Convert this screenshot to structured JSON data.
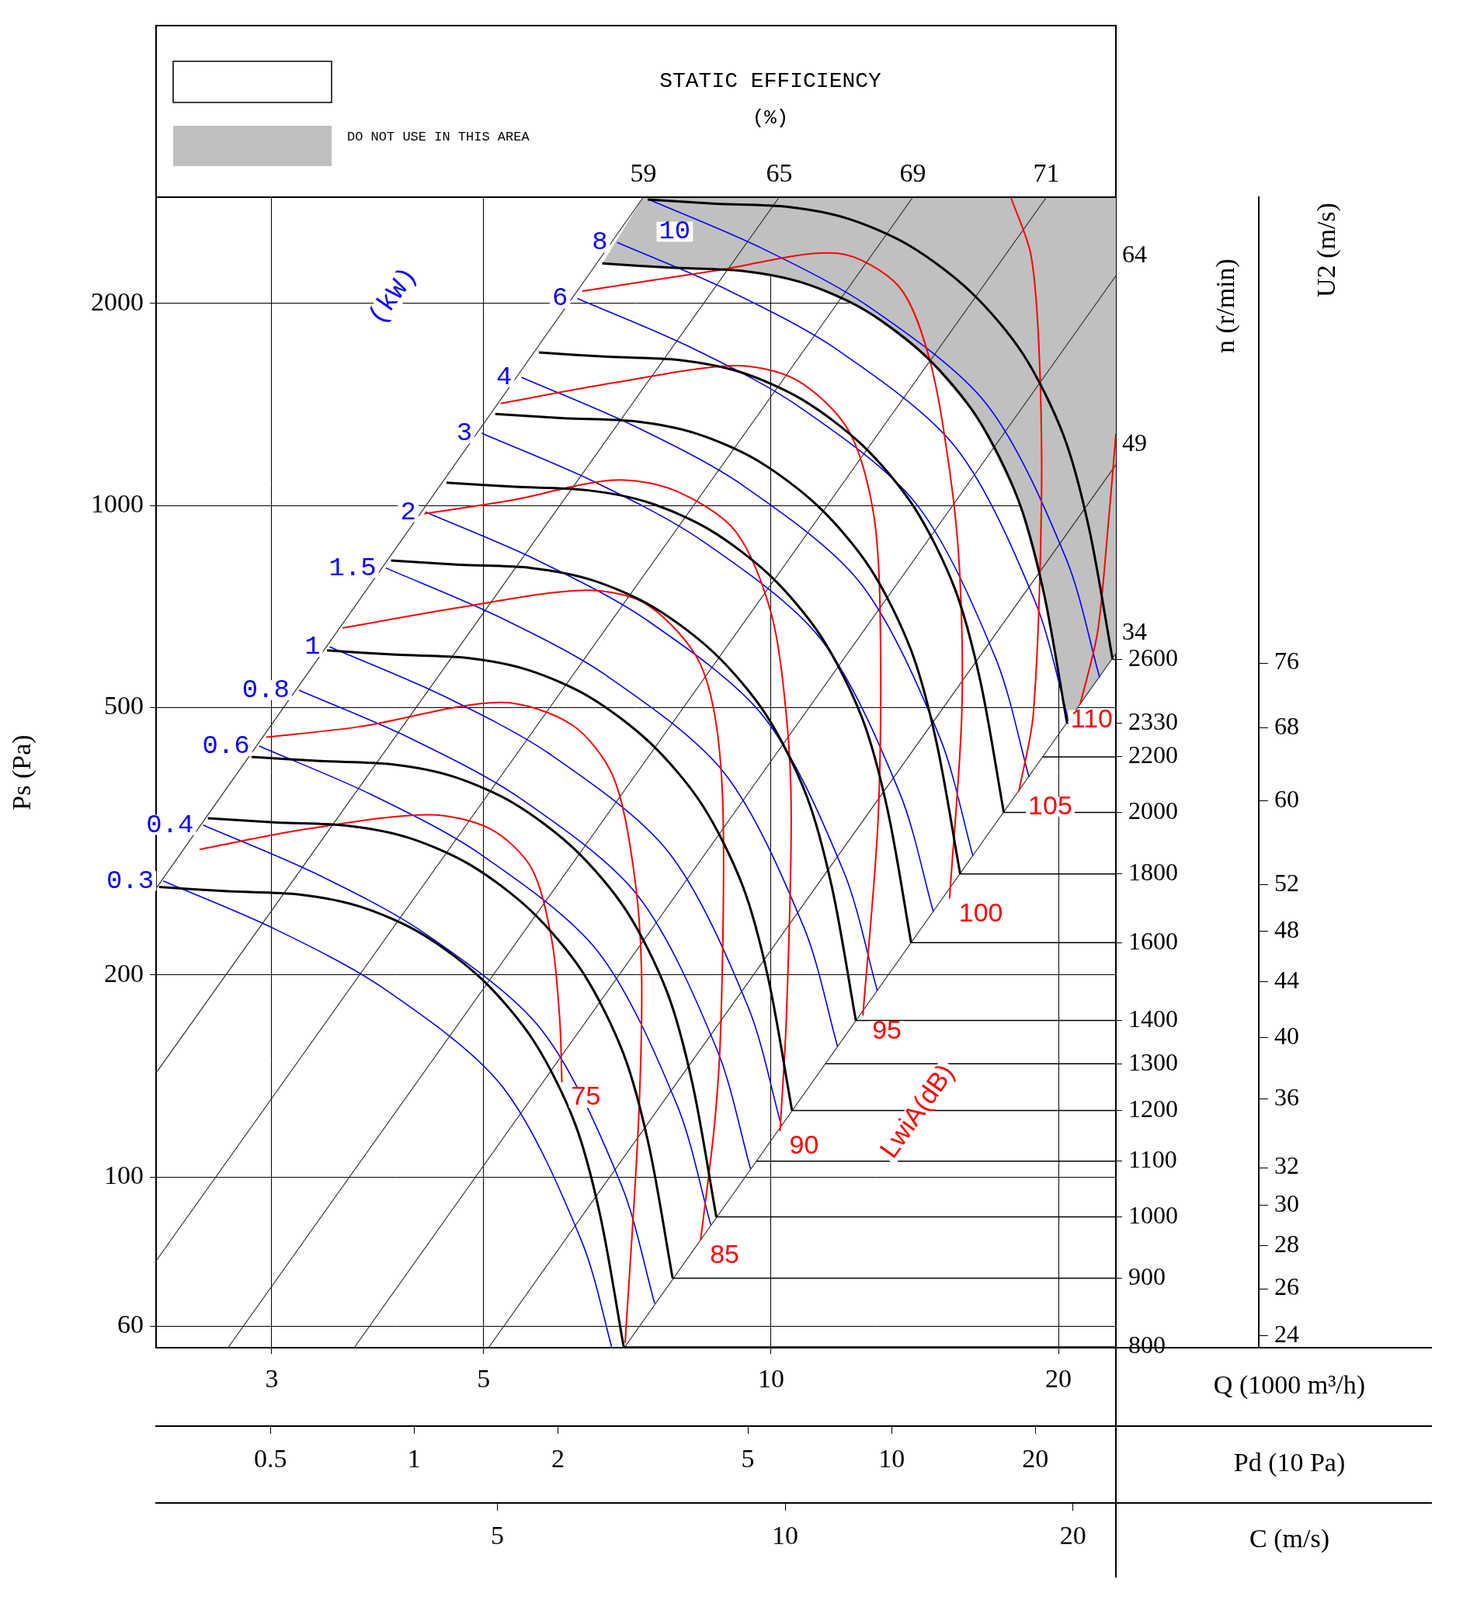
{
  "chart_data": {
    "type": "line",
    "title": "STATIC EFFICIENCY",
    "subtitle": "(%)",
    "x_label": "Q (1000 m³/h)",
    "y_label": "Ps (Pa)",
    "y2_label": "n (r/min)",
    "y3_label": "U2 (m/s)",
    "x2_label": "Pd (10 Pa)",
    "x3_label": "C (m/s)",
    "power_label": "(kW)",
    "noise_label": "LwiA(dB)",
    "log": true,
    "grid": true,
    "legend": "upper left",
    "xlim": [
      2.27,
      22.97
    ],
    "xticks": [
      3,
      5,
      10,
      20
    ],
    "ylim": [
      55.7,
      2878
    ],
    "yticks": [
      60,
      100,
      200,
      500,
      1000,
      2000
    ],
    "y2lim": [
      799,
      5743
    ],
    "y2ticks": [
      800,
      900,
      1000,
      1100,
      1200,
      1300,
      1400,
      1600,
      1800,
      2000,
      2200,
      2330,
      2600
    ],
    "y3lim": [
      23.5,
      168.9
    ],
    "y3ticks": [
      24,
      26,
      28,
      30,
      32,
      36,
      40,
      44,
      48,
      52,
      60,
      68,
      76
    ],
    "x2lim": [
      0.288,
      29.5
    ],
    "x2ticks": [
      0.5,
      1,
      2,
      5,
      10,
      20
    ],
    "x3lim": [
      2.198,
      22.18
    ],
    "x3ticks": [
      5,
      10,
      20
    ],
    "do_not_use_area": {
      "name": "DO NOT USE IN THIS AREA",
      "color": "#c0c0c0",
      "x": [
        6.657,
        7.855,
        9.337,
        10.82,
        12.55,
        14.53,
        16.44,
        18.14,
        19.29,
        20.42,
        22.97,
        22.97,
        7.35
      ],
      "values": [
        2293,
        2260,
        2235,
        2144,
        1953,
        1667,
        1352,
        1022,
        745.1,
        473.7,
        602,
        2878,
        2878
      ]
    },
    "efficiency_lines": [
      {
        "efficiency": 59,
        "color": "#333333",
        "x": [
          2.27,
          7.35
        ],
        "values": [
          269,
          2878
        ]
      },
      {
        "efficiency": 65,
        "color": "#333333",
        "x": [
          2.27,
          10.2
        ],
        "values": [
          142.9,
          2878
        ]
      },
      {
        "efficiency": 69,
        "color": "#333333",
        "x": [
          2.27,
          14.08
        ],
        "values": [
          75.0,
          2878
        ]
      },
      {
        "efficiency": 71,
        "color": "#333333",
        "x": [
          2.7,
          19.43
        ],
        "values": [
          55.7,
          2878
        ]
      },
      {
        "efficiency": 64,
        "color": "#333333",
        "x": [
          3.66,
          22.97
        ],
        "values": [
          55.7,
          2198
        ]
      },
      {
        "efficiency": 49,
        "color": "#333333",
        "x": [
          5.06,
          22.97
        ],
        "values": [
          55.7,
          1150
        ]
      },
      {
        "efficiency": 34,
        "color": "#333333",
        "x": [
          7.02,
          22.97
        ],
        "values": [
          55.7,
          602
        ]
      }
    ],
    "speed_curves": [
      {
        "n": 800,
        "color": "#000000",
        "x": [
          2.286,
          2.697,
          3.206,
          3.714,
          4.308,
          4.988,
          5.645,
          6.228,
          6.622,
          7.011
        ],
        "values": [
          270.3,
          266.4,
          263.5,
          252.7,
          230.2,
          196.6,
          159.3,
          120.5,
          87.8,
          55.8
        ]
      },
      {
        "n": 900,
        "color": "#000000",
        "x": [
          2.572,
          3.034,
          3.607,
          4.179,
          4.847,
          5.612,
          6.352,
          7.008,
          7.451,
          7.888
        ],
        "values": [
          342.2,
          337.3,
          333.5,
          319.9,
          291.4,
          248.8,
          201.7,
          152.5,
          111.2,
          70.7
        ]
      },
      {
        "n": 1000,
        "color": "#000000",
        "x": [
          2.857,
          3.371,
          4.007,
          4.643,
          5.386,
          6.236,
          7.057,
          7.786,
          8.279,
          8.765
        ],
        "values": [
          422.4,
          416.3,
          411.7,
          394.9,
          359.7,
          307.1,
          249.0,
          188.3,
          137.2,
          87.2
        ]
      },
      {
        "n": 1200,
        "color": "#000000",
        "x": [
          3.428,
          4.046,
          4.808,
          5.571,
          6.463,
          7.483,
          8.468,
          9.342,
          9.934,
          10.52
        ],
        "values": [
          608.3,
          599.5,
          592.9,
          568.7,
          518.0,
          442.3,
          358.5,
          271.1,
          197.6,
          125.6
        ]
      },
      {
        "n": 1400,
        "color": "#000000",
        "x": [
          4.0,
          4.72,
          5.61,
          6.5,
          7.54,
          8.73,
          9.88,
          10.9,
          11.59,
          12.27
        ],
        "values": [
          828,
          816,
          807,
          774,
          705,
          602,
          488,
          369,
          269,
          171
        ]
      },
      {
        "n": 1600,
        "color": "#000000",
        "x": [
          4.572,
          5.394,
          6.412,
          7.429,
          8.617,
          9.977,
          11.29,
          12.46,
          13.25,
          14.02
        ],
        "values": [
          1081,
          1066,
          1054,
          1011,
          920.8,
          786.3,
          637.4,
          482.0,
          351.3,
          223.3
        ]
      },
      {
        "n": 1800,
        "color": "#000000",
        "x": [
          5.143,
          6.069,
          7.213,
          8.357,
          9.694,
          11.22,
          12.7,
          14.01,
          14.9,
          15.78
        ],
        "values": [
          1369,
          1349,
          1334,
          1279,
          1165,
          995.2,
          806.7,
          610.0,
          444.7,
          282.7
        ]
      },
      {
        "n": 2000,
        "color": "#000000",
        "x": [
          5.714,
          6.743,
          8.014,
          9.286,
          10.77,
          12.47,
          14.11,
          15.57,
          16.56,
          17.53
        ],
        "values": [
          1690,
          1665,
          1647,
          1580,
          1439,
          1229,
          995.9,
          753.1,
          549.0,
          349.0
        ]
      },
      {
        "n": 2330,
        "color": "#000000",
        "x": [
          6.657,
          7.855,
          9.337,
          10.82,
          12.55,
          14.53,
          16.44,
          18.14,
          19.29,
          20.42
        ],
        "values": [
          2293,
          2260,
          2235,
          2144,
          1953,
          1667,
          1352,
          1022,
          745.1,
          473.7
        ]
      },
      {
        "n": 2600,
        "color": "#000000",
        "x": [
          7.428,
          8.765,
          10.42,
          12.07,
          14.0,
          16.21,
          18.35,
          20.24,
          21.52,
          22.79
        ],
        "values": [
          2856,
          2814,
          2783,
          2670,
          2432,
          2076,
          1683,
          1273,
          927.8,
          589.8
        ]
      }
    ],
    "power_lines": [
      {
        "kw": 0.3,
        "color": "#0000ff",
        "x": [
          2.309,
          3.022,
          3.926,
          5.227,
          6.333,
          6.863
        ],
        "values": [
          276.0,
          234.1,
          191.1,
          136.6,
          80.3,
          53.5
        ]
      },
      {
        "kw": 0.4,
        "color": "#0000ff",
        "x": [
          2.542,
          3.326,
          4.321,
          5.753,
          6.971,
          7.554
        ],
        "values": [
          334.4,
          283.6,
          231.5,
          165.5,
          97.3,
          64.8
        ]
      },
      {
        "kw": 0.6,
        "color": "#0000ff",
        "x": [
          2.91,
          3.807,
          4.947,
          6.585,
          7.979,
          8.647
        ],
        "values": [
          438.2,
          371.6,
          303.4,
          216.8,
          127.6,
          84.9
        ]
      },
      {
        "kw": 0.8,
        "color": "#0000ff",
        "x": [
          3.203,
          4.19,
          5.444,
          7.248,
          8.783,
          9.517
        ],
        "values": [
          530.8,
          450.2,
          367.6,
          262.7,
          154.5,
          102.9
        ]
      },
      {
        "kw": 1,
        "color": "#0000ff",
        "x": [
          3.45,
          4.514,
          5.865,
          7.808,
          9.461,
          10.25
        ],
        "values": [
          615.9,
          522.4,
          426.5,
          304.8,
          179.3,
          119.4
        ]
      },
      {
        "kw": 1.5,
        "color": "#0000ff",
        "x": [
          3.949,
          5.167,
          6.714,
          8.938,
          10.83,
          11.74
        ],
        "values": [
          807.1,
          684.5,
          558.9,
          399.4,
          235.0,
          156.5
        ]
      },
      {
        "kw": 2,
        "color": "#0000ff",
        "x": [
          4.347,
          5.687,
          7.389,
          9.837,
          11.92,
          12.92
        ],
        "values": [
          977.7,
          829.3,
          677.0,
          483.8,
          284.6,
          189.5
        ]
      },
      {
        "kw": 3,
        "color": "#0000ff",
        "x": [
          4.976,
          6.51,
          8.458,
          11.26,
          13.64,
          14.79
        ],
        "values": [
          1281,
          1087,
          887.2,
          634.0,
          373.0,
          248.4
        ]
      },
      {
        "kw": 4,
        "color": "#0000ff",
        "x": [
          5.477,
          7.166,
          9.31,
          12.39,
          15.02,
          16.27
        ],
        "values": [
          1552,
          1316,
          1075,
          768.0,
          451.8,
          300.9
        ]
      },
      {
        "kw": 6,
        "color": "#0000ff",
        "x": [
          6.269,
          8.202,
          10.66,
          14.19,
          17.19,
          18.63
        ],
        "values": [
          2034,
          1725,
          1408,
          1006,
          592.0,
          394.2
        ]
      },
      {
        "kw": 8,
        "color": "#0000ff",
        "x": [
          6.9,
          9.028,
          11.73,
          15.62,
          18.92,
          20.5
        ],
        "values": [
          2464,
          2090,
          1706,
          1219,
          717.2,
          477.6
        ]
      },
      {
        "kw": 10,
        "color": "#0000ff",
        "x": [
          7.433,
          9.725,
          12.64,
          16.82,
          20.38,
          22.09
        ],
        "values": [
          2859,
          2425,
          1980,
          1415,
          832.2,
          554.2
        ]
      }
    ],
    "noise_curves": [
      {
        "db": 75,
        "color": "#ff0000",
        "x": [
          2.521,
          3.265,
          4.386,
          5.084,
          5.61,
          5.892,
          6.009,
          6.039
        ],
        "values": [
          307.5,
          329.8,
          346.4,
          329.8,
          288.7,
          226.0,
          171,
          138.4
        ]
      },
      {
        "db": null,
        "color": "#ff0000",
        "x": [
          2.96,
          3.692,
          5.211,
          6.189,
          6.829,
          7.176,
          7.318,
          7.264,
          7.035
        ],
        "values": [
          451.9,
          468.0,
          509.0,
          471.3,
          395.7,
          288.7,
          203.4,
          120.4,
          56.7
        ]
      },
      {
        "db": 85,
        "color": "#ff0000",
        "x": [
          3.558,
          4.72,
          6.346,
          7.354,
          8.316,
          8.73,
          8.91,
          8.864,
          8.73,
          8.438
        ],
        "values": [
          657.1,
          705,
          747.6,
          717.1,
          602,
          488,
          344.0,
          171,
          120.4,
          80.5
        ]
      },
      {
        "db": 90,
        "color": "#ff0000",
        "x": [
          4.334,
          5.341,
          6.829,
          7.915,
          9.176,
          10,
          10.375,
          10.5,
          10.375,
          10.22
        ],
        "values": [
          972.3,
          1017.6,
          1091,
          1054,
          916.2,
          692.3,
          488,
          344.0,
          171,
          117.1
        ]
      },
      {
        "db": 95,
        "color": "#ff0000",
        "x": [
          5.211,
          6.829,
          9.176,
          10.63,
          12.03,
          12.79,
          13.01,
          12.95,
          12.48
        ],
        "values": [
          1419,
          1522,
          1615,
          1538,
          1300,
          982.6,
          692.3,
          344.0,
          173.9
        ]
      },
      {
        "db": 100,
        "color": "#ff0000",
        "x": [
          6.346,
          8.73,
          11.73,
          13.6,
          14.64,
          15.38,
          15.76,
          15.84,
          15.38
        ],
        "values": [
          2085,
          2236,
          2374,
          2122,
          1661,
          1130,
          796.3,
          488,
          259.9
        ]
      },
      {
        "db": 105,
        "color": "#ff0000",
        "x": [
          17.83,
          18.72,
          19.1,
          19.19,
          18.82,
          18.18
        ],
        "values": [
          2878,
          2357,
          1661,
          982.6,
          488,
          375.4
        ]
      },
      {
        "db": 110,
        "color": "#ff0000",
        "x": [
          22.97,
          22.52,
          21.97,
          21.07
        ],
        "values": [
          1278,
          916.2,
          645.7,
          505.3
        ]
      }
    ]
  }
}
